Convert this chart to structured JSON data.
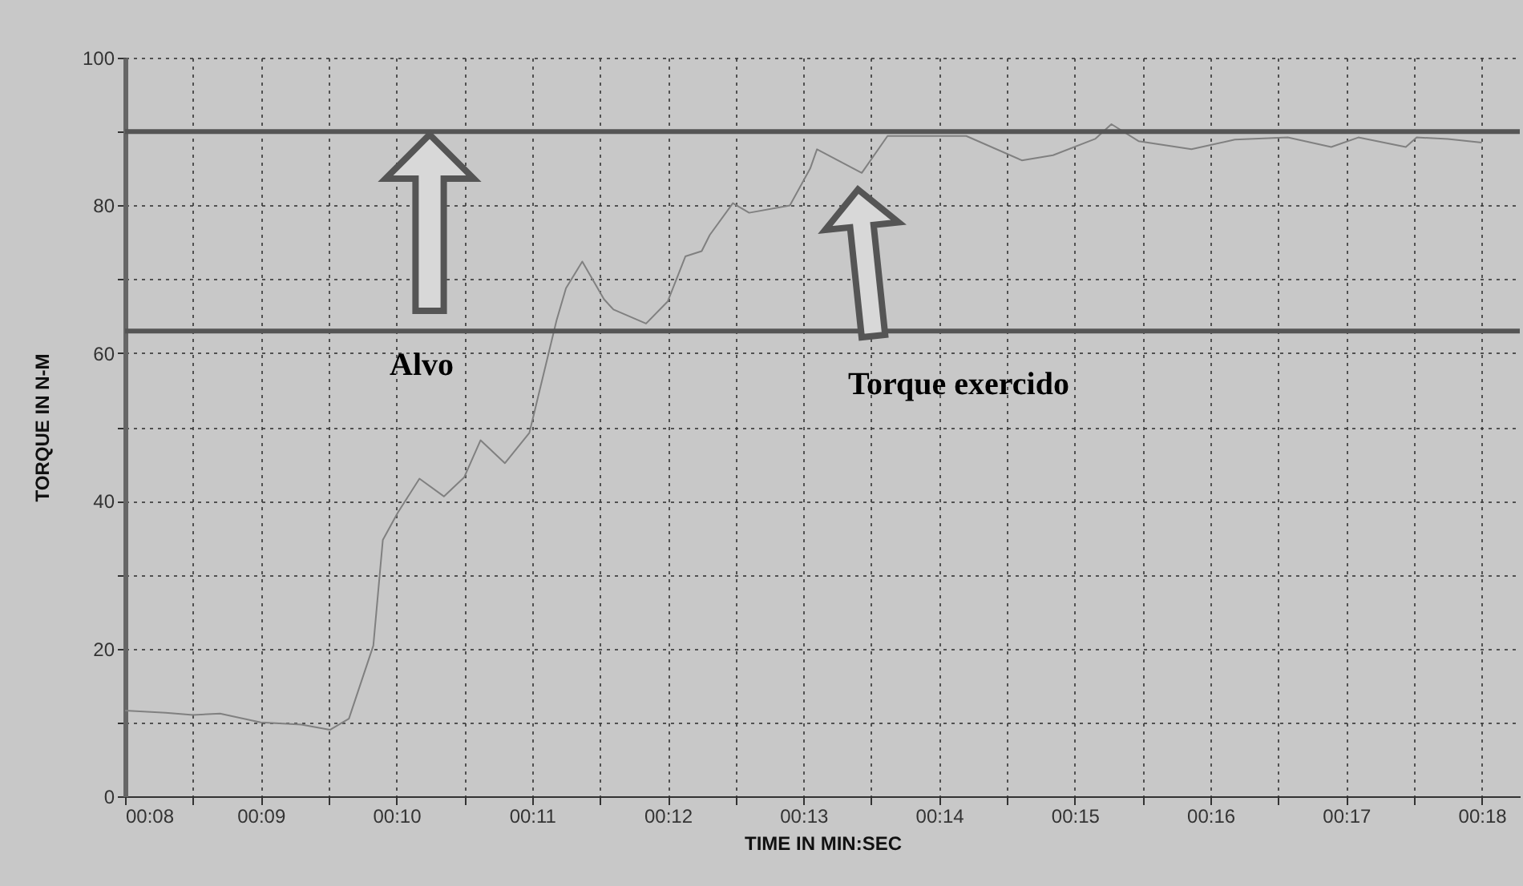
{
  "chart_data": {
    "type": "line",
    "xlabel": "TIME IN MIN:SEC",
    "ylabel": "TORQUE IN N-M",
    "x": [
      8,
      8.3,
      8.5,
      8.7,
      9,
      9.3,
      9.51,
      9.65,
      9.83,
      9.9,
      10.01,
      10.17,
      10.35,
      10.5,
      10.62,
      10.8,
      10.98,
      11.18,
      11.25,
      11.37,
      11.53,
      11.6,
      11.84,
      12,
      12.13,
      12.25,
      12.31,
      12.48,
      12.6,
      12.9,
      13.05,
      13.1,
      13.43,
      13.62,
      14.2,
      14.61,
      14.84,
      15.15,
      15.27,
      15.47,
      15.86,
      16.18,
      16.57,
      16.89,
      17.09,
      17.44,
      17.52,
      17.75,
      18
    ],
    "series": [
      {
        "color": "#808080",
        "values": [
          11.6,
          11.3,
          11,
          11.2,
          10,
          9.7,
          9,
          10.5,
          20.4,
          34.7,
          38.4,
          43,
          40.6,
          43.2,
          48.2,
          45.1,
          49.2,
          64.4,
          68.8,
          72.4,
          67.3,
          65.9,
          64,
          67,
          73.1,
          73.8,
          76,
          80.3,
          79,
          80,
          85,
          87.6,
          84.4,
          89.4,
          89.4,
          86.1,
          86.8,
          89,
          91,
          88.7,
          87.6,
          88.9,
          89.2,
          87.9,
          89.2,
          87.9,
          89.2,
          89,
          88.5
        ]
      }
    ],
    "xlim": [
      8,
      18.28
    ],
    "ylim": [
      0,
      100
    ],
    "xticks": [
      {
        "value": 8,
        "label": "00:08"
      },
      {
        "value": 8.5,
        "label": null
      },
      {
        "value": 9,
        "label": "00:09"
      },
      {
        "value": 9.5,
        "label": null
      },
      {
        "value": 10,
        "label": "00:10"
      },
      {
        "value": 10.5,
        "label": null
      },
      {
        "value": 11,
        "label": "00:11"
      },
      {
        "value": 11.5,
        "label": null
      },
      {
        "value": 12,
        "label": "00:12"
      },
      {
        "value": 12.5,
        "label": null
      },
      {
        "value": 13,
        "label": "00:13"
      },
      {
        "value": 13.5,
        "label": null
      },
      {
        "value": 14,
        "label": "00:14"
      },
      {
        "value": 14.5,
        "label": null
      },
      {
        "value": 15,
        "label": "00:15"
      },
      {
        "value": 15.5,
        "label": null
      },
      {
        "value": 16,
        "label": "00:16"
      },
      {
        "value": 16.5,
        "label": null
      },
      {
        "value": 17,
        "label": "00:17"
      },
      {
        "value": 17.5,
        "label": null
      },
      {
        "value": 18,
        "label": "00:18"
      }
    ],
    "yticks": [
      0,
      {
        "value": 10,
        "label": null
      },
      20,
      {
        "value": 30,
        "label": null
      },
      40,
      {
        "value": 50,
        "label": null
      },
      60,
      {
        "value": 70,
        "label": null
      },
      80,
      {
        "value": 90,
        "label": null
      },
      100
    ],
    "grid": true,
    "ref_lines": [
      {
        "axis": "y",
        "value": 90,
        "color": "#555555"
      },
      {
        "axis": "y",
        "value": 63,
        "color": "#555555"
      }
    ],
    "annotations": [
      "Alvo",
      "Torque exercido"
    ]
  }
}
